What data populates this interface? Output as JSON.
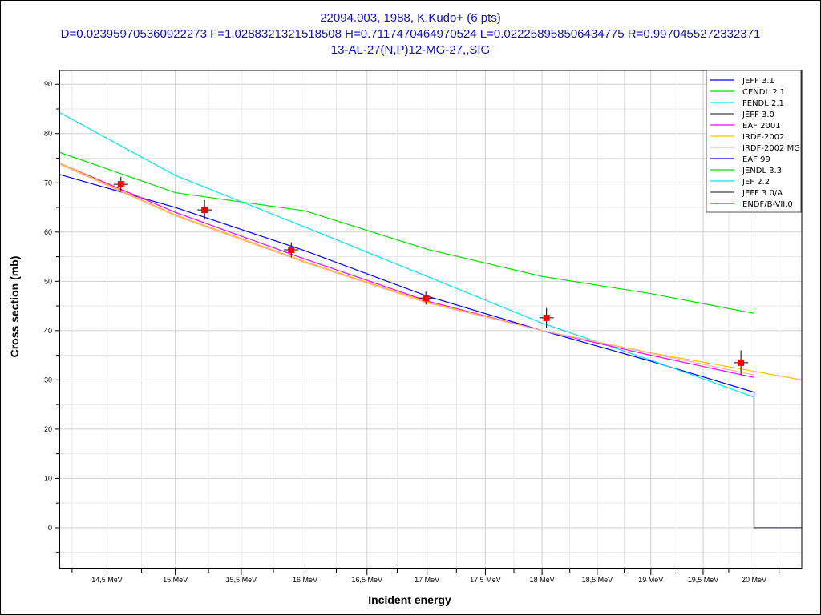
{
  "chart_data": {
    "type": "line",
    "title": "22094.003, 1988, K.Kudo+ (6 pts)",
    "subtitle": "D=0.023959705360922273 F=1.0288321321518508 H=0.7117470464970524 L=0.022258958506434775 R=0.9970455272332371",
    "reaction": "13-AL-27(N,P)12-MG-27,,SIG",
    "xlabel": "Incident energy",
    "ylabel": "Cross section (mb)",
    "xscale": "log",
    "xlim": [
      14.16,
      20.48
    ],
    "ylim": [
      -8.3,
      92.8
    ],
    "x_ticks": [
      14.5,
      15,
      15.5,
      16,
      16.5,
      17,
      17.5,
      18,
      18.5,
      19,
      19.5,
      20
    ],
    "x_tick_labels": [
      "14,5 MeV",
      "15 MeV",
      "15,5 MeV",
      "16 MeV",
      "16,5 MeV",
      "17 MeV",
      "17,5 MeV",
      "18 MeV",
      "18,5 MeV",
      "19 MeV",
      "19,5 MeV",
      "20 MeV"
    ],
    "y_ticks": [
      0,
      10,
      20,
      30,
      40,
      50,
      60,
      70,
      80,
      90
    ],
    "y_tick_labels": [
      "0",
      "10",
      "20",
      "30",
      "40",
      "50",
      "60",
      "70",
      "80",
      "90"
    ],
    "grid": true,
    "legend_position": "top-right",
    "experimental": {
      "x": [
        14.6,
        15.22,
        15.89,
        16.99,
        18.04,
        19.87
      ],
      "y": [
        69.7,
        64.5,
        56.4,
        46.6,
        42.6,
        33.5
      ],
      "yerr": [
        1.5,
        2.0,
        1.5,
        1.3,
        2.0,
        2.5
      ],
      "color": "#ff0000"
    },
    "series": [
      {
        "name": "JEFF 3.1",
        "color": "#0000ff",
        "x": [
          14.16,
          15,
          16,
          17,
          18,
          19,
          20,
          20,
          20.48
        ],
        "y": [
          71.7,
          65,
          56.2,
          47,
          40,
          33.8,
          27.5,
          0,
          0
        ]
      },
      {
        "name": "CENDL 2.1",
        "color": "#00e000",
        "x": [
          14.16,
          15,
          16,
          17,
          18,
          19,
          20
        ],
        "y": [
          76.2,
          68,
          64.3,
          56.5,
          51,
          47.5,
          43.5
        ]
      },
      {
        "name": "FENDL 2.1",
        "color": "#00e8f0",
        "x": [
          14.16,
          15,
          16,
          17,
          18,
          19,
          20
        ],
        "y": [
          84.3,
          71.5,
          61,
          51,
          41.5,
          34,
          26.5
        ]
      },
      {
        "name": "JEFF 3.0",
        "color": "#404040",
        "x": [
          20,
          20,
          20.48
        ],
        "y": [
          26.5,
          0,
          0
        ]
      },
      {
        "name": "EAF 2001",
        "color": "#ff00ff",
        "x": [
          14.16,
          15,
          16,
          17,
          18,
          19,
          20
        ],
        "y": [
          74,
          64,
          54.5,
          46,
          40,
          35,
          30.5
        ]
      },
      {
        "name": "IRDF-2002",
        "color": "#ffc000",
        "x": [
          14.16,
          15,
          16,
          17,
          18,
          19,
          20.48
        ],
        "y": [
          74,
          63.5,
          54,
          45.8,
          40,
          35.5,
          30
        ]
      },
      {
        "name": "IRDF-2002 MG",
        "color": "#ffb0a8",
        "x": [
          14.16,
          15,
          16,
          17,
          18,
          19,
          20
        ],
        "y": [
          73.8,
          63.3,
          53.8,
          45.6,
          40,
          35.4,
          31
        ]
      },
      {
        "name": "EAF 99",
        "color": "#0000e0",
        "x": [],
        "y": []
      },
      {
        "name": "JENDL 3.3",
        "color": "#00e000",
        "x": [],
        "y": []
      },
      {
        "name": "JEF 2.2",
        "color": "#00e8f0",
        "x": [],
        "y": []
      },
      {
        "name": "JEFF 3.0/A",
        "color": "#404040",
        "x": [],
        "y": []
      },
      {
        "name": "ENDF/B-VII.0",
        "color": "#ff00ff",
        "x": [],
        "y": []
      }
    ]
  }
}
